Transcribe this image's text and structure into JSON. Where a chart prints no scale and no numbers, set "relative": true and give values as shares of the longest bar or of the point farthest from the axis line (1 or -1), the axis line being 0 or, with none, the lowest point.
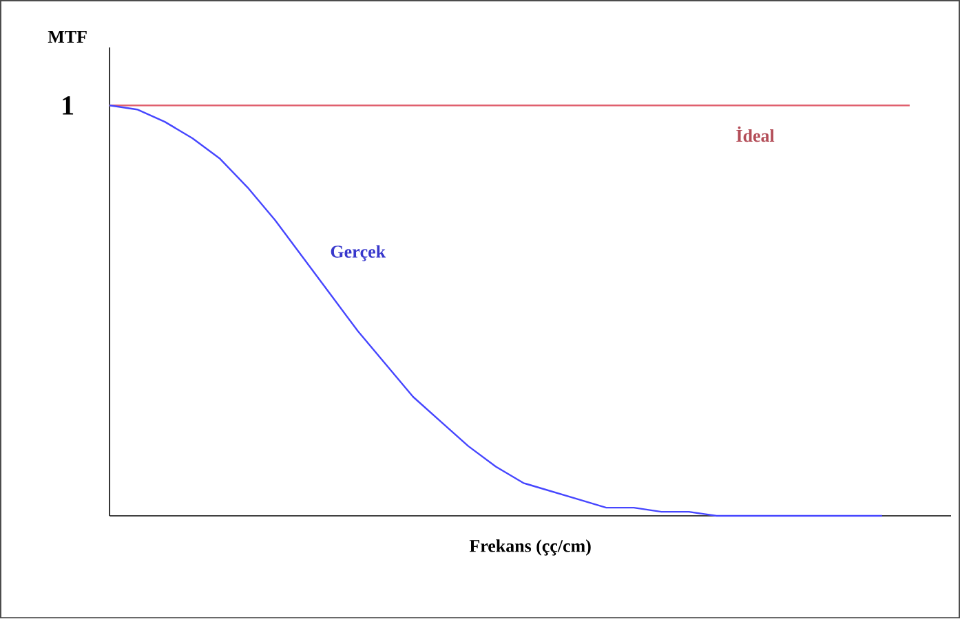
{
  "chart_data": {
    "type": "line",
    "relative": true,
    "xlabel": "Frekans (çç/cm)",
    "ylabel": "MTF",
    "annotations": [
      "1"
    ],
    "categories": [
      null,
      null,
      null,
      null,
      null,
      null,
      null,
      null,
      null,
      null,
      null,
      null,
      null,
      null,
      null,
      null,
      null,
      null,
      null,
      null,
      null,
      null,
      null,
      null,
      null,
      null,
      null,
      null,
      null,
      null
    ],
    "series": [
      {
        "name": "İdeal",
        "color": "#e0606e",
        "values": [
          1,
          1,
          1,
          1,
          1,
          1,
          1,
          1,
          1,
          1,
          1,
          1,
          1,
          1,
          1,
          1,
          1,
          1,
          1,
          1,
          1,
          1,
          1,
          1,
          1,
          1,
          1,
          1,
          1,
          1
        ]
      },
      {
        "name": "Gerçek",
        "color": "#4646ff",
        "values": [
          1,
          0.99,
          0.96,
          0.92,
          0.87,
          0.8,
          0.72,
          0.63,
          0.54,
          0.45,
          0.37,
          0.29,
          0.23,
          0.17,
          0.12,
          0.08,
          0.06,
          0.04,
          0.02,
          0.02,
          0.01,
          0.01,
          0,
          0,
          0,
          0,
          0,
          0,
          0,
          null
        ]
      }
    ],
    "line_style": "solid"
  }
}
